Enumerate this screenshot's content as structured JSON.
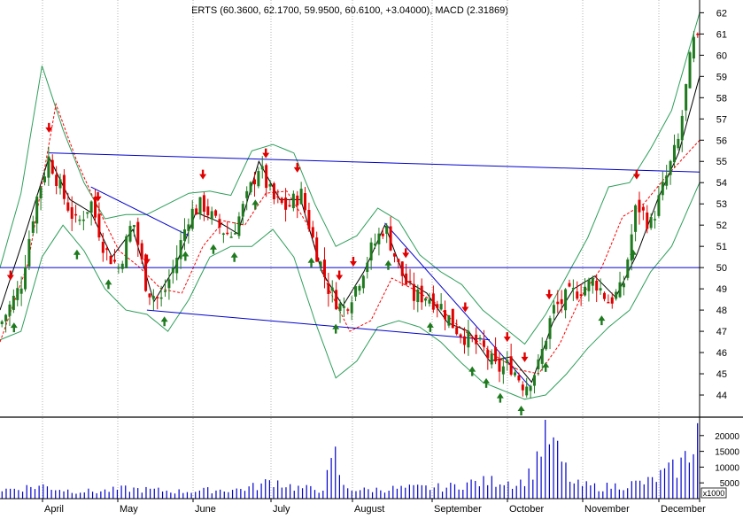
{
  "chart_data": {
    "type": "candlestick",
    "title": "ERTS (60.3600, 62.1700, 59.9500, 60.6100, +3.04000), MACD (2.31869)",
    "price_axis": {
      "ylim": [
        43.0,
        62.6
      ],
      "ticks": [
        "44",
        "45",
        "46",
        "47",
        "48",
        "49",
        "50",
        "51",
        "52",
        "53",
        "54",
        "55",
        "56",
        "57",
        "58",
        "59",
        "60",
        "61",
        "62"
      ]
    },
    "volume_axis": {
      "ylim": [
        0,
        25000
      ],
      "ticks": [
        "5000",
        "10000",
        "15000",
        "20000"
      ],
      "unit_label": "x1000"
    },
    "months": [
      "April",
      "May",
      "June",
      "July",
      "August",
      "September",
      "October",
      "November",
      "December"
    ],
    "grid": "dotted vertical at month starts",
    "colors": {
      "up": "#1f7a1f",
      "down": "#e00000",
      "ma_short": "#000000",
      "ma_long": "#ff0000",
      "band": "#2e9e5a",
      "trendline": "#0000cc",
      "volume": "#0000cc",
      "buy_arrow": "#1f7a1f",
      "sell_arrow": "#e00000"
    },
    "horizontal_line": 50.0,
    "trendlines": [
      {
        "from": [
          0.07,
          55.4
        ],
        "to": [
          1.0,
          54.5
        ]
      },
      {
        "from": [
          0.21,
          48.0
        ],
        "to": [
          0.7,
          46.6
        ]
      },
      {
        "from": [
          0.13,
          53.8
        ],
        "to": [
          0.27,
          51.5
        ]
      },
      {
        "from": [
          0.55,
          52.1
        ],
        "to": [
          0.76,
          44.3
        ]
      }
    ],
    "close_anchors": [
      [
        0.0,
        47.3
      ],
      [
        0.03,
        49.2
      ],
      [
        0.05,
        53.0
      ],
      [
        0.07,
        55.2
      ],
      [
        0.09,
        53.4
      ],
      [
        0.11,
        52.0
      ],
      [
        0.13,
        53.1
      ],
      [
        0.15,
        50.8
      ],
      [
        0.17,
        50.0
      ],
      [
        0.19,
        52.3
      ],
      [
        0.21,
        49.0
      ],
      [
        0.23,
        48.4
      ],
      [
        0.25,
        50.2
      ],
      [
        0.27,
        52.5
      ],
      [
        0.29,
        53.0
      ],
      [
        0.31,
        52.0
      ],
      [
        0.33,
        51.5
      ],
      [
        0.35,
        53.0
      ],
      [
        0.37,
        54.8
      ],
      [
        0.39,
        53.2
      ],
      [
        0.41,
        52.8
      ],
      [
        0.43,
        53.5
      ],
      [
        0.45,
        51.0
      ],
      [
        0.47,
        49.0
      ],
      [
        0.49,
        48.0
      ],
      [
        0.51,
        49.2
      ],
      [
        0.53,
        50.8
      ],
      [
        0.55,
        52.0
      ],
      [
        0.57,
        50.0
      ],
      [
        0.59,
        48.6
      ],
      [
        0.61,
        48.7
      ],
      [
        0.63,
        48.2
      ],
      [
        0.65,
        47.2
      ],
      [
        0.67,
        46.6
      ],
      [
        0.69,
        46.2
      ],
      [
        0.71,
        45.2
      ],
      [
        0.73,
        45.4
      ],
      [
        0.75,
        44.4
      ],
      [
        0.77,
        45.4
      ],
      [
        0.79,
        48.0
      ],
      [
        0.81,
        48.6
      ],
      [
        0.83,
        49.0
      ],
      [
        0.85,
        49.4
      ],
      [
        0.87,
        48.4
      ],
      [
        0.89,
        49.0
      ],
      [
        0.91,
        53.0
      ],
      [
        0.93,
        52.0
      ],
      [
        0.95,
        54.0
      ],
      [
        0.97,
        56.0
      ],
      [
        0.99,
        60.6
      ]
    ],
    "ma_short_anchors": [
      [
        0.0,
        48.0
      ],
      [
        0.04,
        52.0
      ],
      [
        0.07,
        55.2
      ],
      [
        0.1,
        53.2
      ],
      [
        0.13,
        52.6
      ],
      [
        0.16,
        50.5
      ],
      [
        0.19,
        51.8
      ],
      [
        0.22,
        48.4
      ],
      [
        0.25,
        50.0
      ],
      [
        0.28,
        52.6
      ],
      [
        0.31,
        52.2
      ],
      [
        0.34,
        51.6
      ],
      [
        0.37,
        55.0
      ],
      [
        0.4,
        53.2
      ],
      [
        0.43,
        53.2
      ],
      [
        0.46,
        49.8
      ],
      [
        0.49,
        48.2
      ],
      [
        0.52,
        49.8
      ],
      [
        0.55,
        52.0
      ],
      [
        0.58,
        49.4
      ],
      [
        0.61,
        48.8
      ],
      [
        0.64,
        47.4
      ],
      [
        0.67,
        47.0
      ],
      [
        0.7,
        45.6
      ],
      [
        0.73,
        45.8
      ],
      [
        0.76,
        44.6
      ],
      [
        0.79,
        47.4
      ],
      [
        0.82,
        49.0
      ],
      [
        0.85,
        49.6
      ],
      [
        0.88,
        48.6
      ],
      [
        0.91,
        50.6
      ],
      [
        0.94,
        53.2
      ],
      [
        0.97,
        55.4
      ],
      [
        1.0,
        59.0
      ]
    ],
    "ma_long_anchors": [
      [
        0.0,
        46.5
      ],
      [
        0.04,
        50.2
      ],
      [
        0.08,
        57.7
      ],
      [
        0.11,
        55.0
      ],
      [
        0.14,
        52.8
      ],
      [
        0.17,
        50.8
      ],
      [
        0.2,
        50.0
      ],
      [
        0.23,
        49.0
      ],
      [
        0.26,
        48.8
      ],
      [
        0.29,
        51.0
      ],
      [
        0.32,
        52.2
      ],
      [
        0.35,
        52.0
      ],
      [
        0.38,
        53.5
      ],
      [
        0.41,
        53.6
      ],
      [
        0.44,
        52.0
      ],
      [
        0.47,
        49.0
      ],
      [
        0.5,
        47.0
      ],
      [
        0.53,
        47.5
      ],
      [
        0.56,
        49.5
      ],
      [
        0.59,
        49.0
      ],
      [
        0.62,
        48.4
      ],
      [
        0.65,
        47.4
      ],
      [
        0.68,
        46.6
      ],
      [
        0.71,
        45.8
      ],
      [
        0.74,
        45.2
      ],
      [
        0.77,
        45.0
      ],
      [
        0.8,
        46.4
      ],
      [
        0.83,
        48.6
      ],
      [
        0.86,
        50.0
      ],
      [
        0.89,
        52.4
      ],
      [
        0.92,
        53.0
      ],
      [
        0.95,
        54.2
      ],
      [
        1.0,
        56.0
      ]
    ],
    "band_upper_anchors": [
      [
        0.0,
        50.0
      ],
      [
        0.03,
        53.5
      ],
      [
        0.06,
        59.5
      ],
      [
        0.09,
        56.5
      ],
      [
        0.12,
        54.0
      ],
      [
        0.15,
        52.3
      ],
      [
        0.18,
        52.5
      ],
      [
        0.21,
        52.5
      ],
      [
        0.24,
        53.0
      ],
      [
        0.27,
        53.5
      ],
      [
        0.3,
        53.6
      ],
      [
        0.33,
        53.4
      ],
      [
        0.36,
        55.5
      ],
      [
        0.39,
        55.8
      ],
      [
        0.42,
        55.4
      ],
      [
        0.45,
        53.0
      ],
      [
        0.48,
        51.0
      ],
      [
        0.51,
        51.5
      ],
      [
        0.54,
        52.8
      ],
      [
        0.57,
        52.2
      ],
      [
        0.6,
        50.6
      ],
      [
        0.63,
        49.8
      ],
      [
        0.66,
        49.2
      ],
      [
        0.69,
        48.0
      ],
      [
        0.72,
        47.2
      ],
      [
        0.75,
        46.4
      ],
      [
        0.78,
        47.8
      ],
      [
        0.81,
        49.6
      ],
      [
        0.84,
        51.4
      ],
      [
        0.87,
        53.8
      ],
      [
        0.9,
        54.0
      ],
      [
        0.93,
        55.6
      ],
      [
        0.96,
        57.4
      ],
      [
        1.0,
        62.0
      ]
    ],
    "band_lower_anchors": [
      [
        0.0,
        46.6
      ],
      [
        0.03,
        47.0
      ],
      [
        0.06,
        50.5
      ],
      [
        0.09,
        52.0
      ],
      [
        0.12,
        50.8
      ],
      [
        0.15,
        49.0
      ],
      [
        0.18,
        48.0
      ],
      [
        0.21,
        47.8
      ],
      [
        0.24,
        47.0
      ],
      [
        0.27,
        48.5
      ],
      [
        0.3,
        50.5
      ],
      [
        0.33,
        51.0
      ],
      [
        0.36,
        51.0
      ],
      [
        0.39,
        51.8
      ],
      [
        0.42,
        50.5
      ],
      [
        0.45,
        47.5
      ],
      [
        0.48,
        44.8
      ],
      [
        0.51,
        45.6
      ],
      [
        0.54,
        47.2
      ],
      [
        0.57,
        47.5
      ],
      [
        0.6,
        47.2
      ],
      [
        0.63,
        46.5
      ],
      [
        0.66,
        45.5
      ],
      [
        0.69,
        44.6
      ],
      [
        0.72,
        44.2
      ],
      [
        0.75,
        43.8
      ],
      [
        0.78,
        44.0
      ],
      [
        0.81,
        45.0
      ],
      [
        0.84,
        46.2
      ],
      [
        0.87,
        47.2
      ],
      [
        0.9,
        48.0
      ],
      [
        0.93,
        49.8
      ],
      [
        0.96,
        51.0
      ],
      [
        1.0,
        54.0
      ]
    ],
    "volume_anchors": [
      [
        0.0,
        3000
      ],
      [
        0.04,
        4000
      ],
      [
        0.06,
        4500
      ],
      [
        0.1,
        2800
      ],
      [
        0.14,
        2500
      ],
      [
        0.18,
        3500
      ],
      [
        0.22,
        3000
      ],
      [
        0.26,
        2500
      ],
      [
        0.3,
        3000
      ],
      [
        0.34,
        3200
      ],
      [
        0.37,
        4500
      ],
      [
        0.39,
        6500
      ],
      [
        0.42,
        4000
      ],
      [
        0.46,
        3000
      ],
      [
        0.48,
        15000
      ],
      [
        0.49,
        4000
      ],
      [
        0.52,
        3000
      ],
      [
        0.56,
        3500
      ],
      [
        0.6,
        3800
      ],
      [
        0.64,
        4000
      ],
      [
        0.67,
        5500
      ],
      [
        0.7,
        6000
      ],
      [
        0.72,
        6500
      ],
      [
        0.74,
        5000
      ],
      [
        0.76,
        9000
      ],
      [
        0.78,
        24000
      ],
      [
        0.8,
        14000
      ],
      [
        0.82,
        5000
      ],
      [
        0.86,
        4000
      ],
      [
        0.9,
        5000
      ],
      [
        0.93,
        6000
      ],
      [
        0.95,
        9000
      ],
      [
        0.97,
        11000
      ],
      [
        0.985,
        16000
      ],
      [
        0.995,
        25000
      ]
    ],
    "buy_signals": [
      0.02,
      0.11,
      0.155,
      0.235,
      0.265,
      0.305,
      0.335,
      0.365,
      0.445,
      0.48,
      0.555,
      0.615,
      0.675,
      0.695,
      0.715,
      0.745,
      0.78,
      0.86,
      0.905
    ],
    "sell_signals": [
      0.015,
      0.07,
      0.14,
      0.21,
      0.29,
      0.38,
      0.425,
      0.485,
      0.505,
      0.58,
      0.665,
      0.725,
      0.75,
      0.785,
      0.91
    ]
  }
}
